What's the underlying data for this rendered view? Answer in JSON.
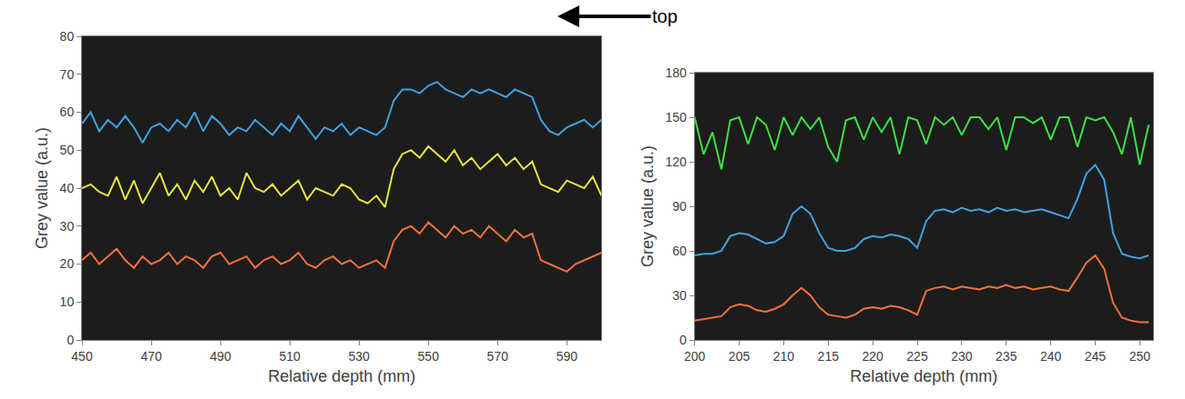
{
  "annotation": "top",
  "chart_data": [
    {
      "type": "line",
      "x_label": "Relative depth (mm)",
      "y_label": "Grey value (a.u.)",
      "xlim": [
        450,
        600
      ],
      "xticks": [
        450,
        470,
        490,
        510,
        530,
        550,
        570,
        590
      ],
      "ylim": [
        0,
        80
      ],
      "yticks": [
        0,
        10,
        20,
        30,
        40,
        50,
        60,
        70,
        80
      ],
      "grid": false,
      "x": [
        450,
        452.5,
        455,
        457.5,
        460,
        462.5,
        465,
        467.5,
        470,
        472.5,
        475,
        477.5,
        480,
        482.5,
        485,
        487.5,
        490,
        492.5,
        495,
        497.5,
        500,
        502.5,
        505,
        507.5,
        510,
        512.5,
        515,
        517.5,
        520,
        522.5,
        525,
        527.5,
        530,
        532.5,
        535,
        537.5,
        540,
        542.5,
        545,
        547.5,
        550,
        552.5,
        555,
        557.5,
        560,
        562.5,
        565,
        567.5,
        570,
        572.5,
        575,
        577.5,
        580,
        582.5,
        585,
        587.5,
        590,
        592.5,
        595,
        597.5,
        600
      ],
      "series": [
        {
          "color": "#3fa2e0",
          "values": [
            57,
            60,
            55,
            58,
            56,
            59,
            56,
            52,
            56,
            57,
            55,
            58,
            56,
            60,
            55,
            59,
            57,
            54,
            56,
            55,
            58,
            56,
            54,
            57,
            55,
            59,
            56,
            53,
            56,
            55,
            57,
            54,
            56,
            55,
            54,
            56,
            63,
            66,
            66,
            65,
            67,
            68,
            66,
            65,
            64,
            66,
            65,
            66,
            65,
            64,
            66,
            65,
            64,
            58,
            55,
            54,
            56,
            57,
            58,
            56,
            58
          ]
        },
        {
          "color": "#e6e640",
          "values": [
            40,
            41,
            39,
            38,
            43,
            37,
            42,
            36,
            40,
            44,
            38,
            41,
            37,
            42,
            39,
            43,
            38,
            40,
            37,
            44,
            40,
            39,
            41,
            38,
            40,
            42,
            37,
            40,
            39,
            38,
            41,
            40,
            37,
            36,
            38,
            35,
            45,
            49,
            50,
            48,
            51,
            49,
            47,
            50,
            46,
            48,
            45,
            47,
            49,
            46,
            48,
            45,
            47,
            41,
            40,
            39,
            42,
            41,
            40,
            43,
            38
          ]
        },
        {
          "color": "#f0703c",
          "values": [
            21,
            23,
            20,
            22,
            24,
            21,
            19,
            22,
            20,
            21,
            23,
            20,
            22,
            21,
            19,
            22,
            23,
            20,
            21,
            22,
            19,
            21,
            22,
            20,
            21,
            23,
            20,
            19,
            21,
            22,
            20,
            21,
            19,
            20,
            21,
            19,
            26,
            29,
            30,
            28,
            31,
            29,
            27,
            30,
            28,
            29,
            27,
            30,
            28,
            26,
            29,
            27,
            28,
            21,
            20,
            19,
            18,
            20,
            21,
            22,
            23
          ]
        }
      ]
    },
    {
      "type": "line",
      "x_label": "Relative depth (mm)",
      "y_label": "Grey value (a.u.)",
      "xlim": [
        200,
        251.5
      ],
      "xticks": [
        200,
        205,
        210,
        215,
        220,
        225,
        230,
        235,
        240,
        245,
        250
      ],
      "ylim": [
        0,
        180
      ],
      "yticks": [
        0,
        30,
        60,
        90,
        120,
        150,
        180
      ],
      "grid": false,
      "x": [
        200,
        201,
        202,
        203,
        204,
        205,
        206,
        207,
        208,
        209,
        210,
        211,
        212,
        213,
        214,
        215,
        216,
        217,
        218,
        219,
        220,
        221,
        222,
        223,
        224,
        225,
        226,
        227,
        228,
        229,
        230,
        231,
        232,
        233,
        234,
        235,
        236,
        237,
        238,
        239,
        240,
        241,
        242,
        243,
        244,
        245,
        246,
        247,
        248,
        249,
        250,
        251
      ],
      "series": [
        {
          "color": "#3ee044",
          "values": [
            150,
            125,
            140,
            115,
            148,
            150,
            132,
            150,
            145,
            128,
            150,
            138,
            150,
            142,
            150,
            130,
            120,
            148,
            150,
            135,
            150,
            140,
            150,
            125,
            150,
            148,
            132,
            150,
            145,
            150,
            138,
            150,
            150,
            142,
            150,
            128,
            150,
            150,
            146,
            150,
            135,
            150,
            150,
            130,
            150,
            148,
            150,
            140,
            125,
            150,
            118,
            145
          ]
        },
        {
          "color": "#3fa2e0",
          "values": [
            57,
            58,
            58,
            60,
            70,
            72,
            71,
            68,
            65,
            66,
            70,
            85,
            90,
            85,
            72,
            62,
            60,
            60,
            62,
            68,
            70,
            69,
            71,
            70,
            68,
            62,
            80,
            87,
            88,
            86,
            89,
            87,
            88,
            86,
            89,
            87,
            88,
            86,
            87,
            88,
            86,
            84,
            82,
            95,
            112,
            118,
            108,
            72,
            58,
            56,
            55,
            57
          ]
        },
        {
          "color": "#f0703c",
          "values": [
            13,
            14,
            15,
            16,
            22,
            24,
            23,
            20,
            19,
            21,
            24,
            30,
            35,
            30,
            22,
            17,
            16,
            15,
            17,
            21,
            22,
            21,
            23,
            22,
            20,
            17,
            33,
            35,
            36,
            34,
            36,
            35,
            34,
            36,
            35,
            37,
            35,
            36,
            34,
            35,
            36,
            34,
            33,
            42,
            52,
            57,
            48,
            25,
            15,
            13,
            12,
            12
          ]
        }
      ]
    }
  ]
}
